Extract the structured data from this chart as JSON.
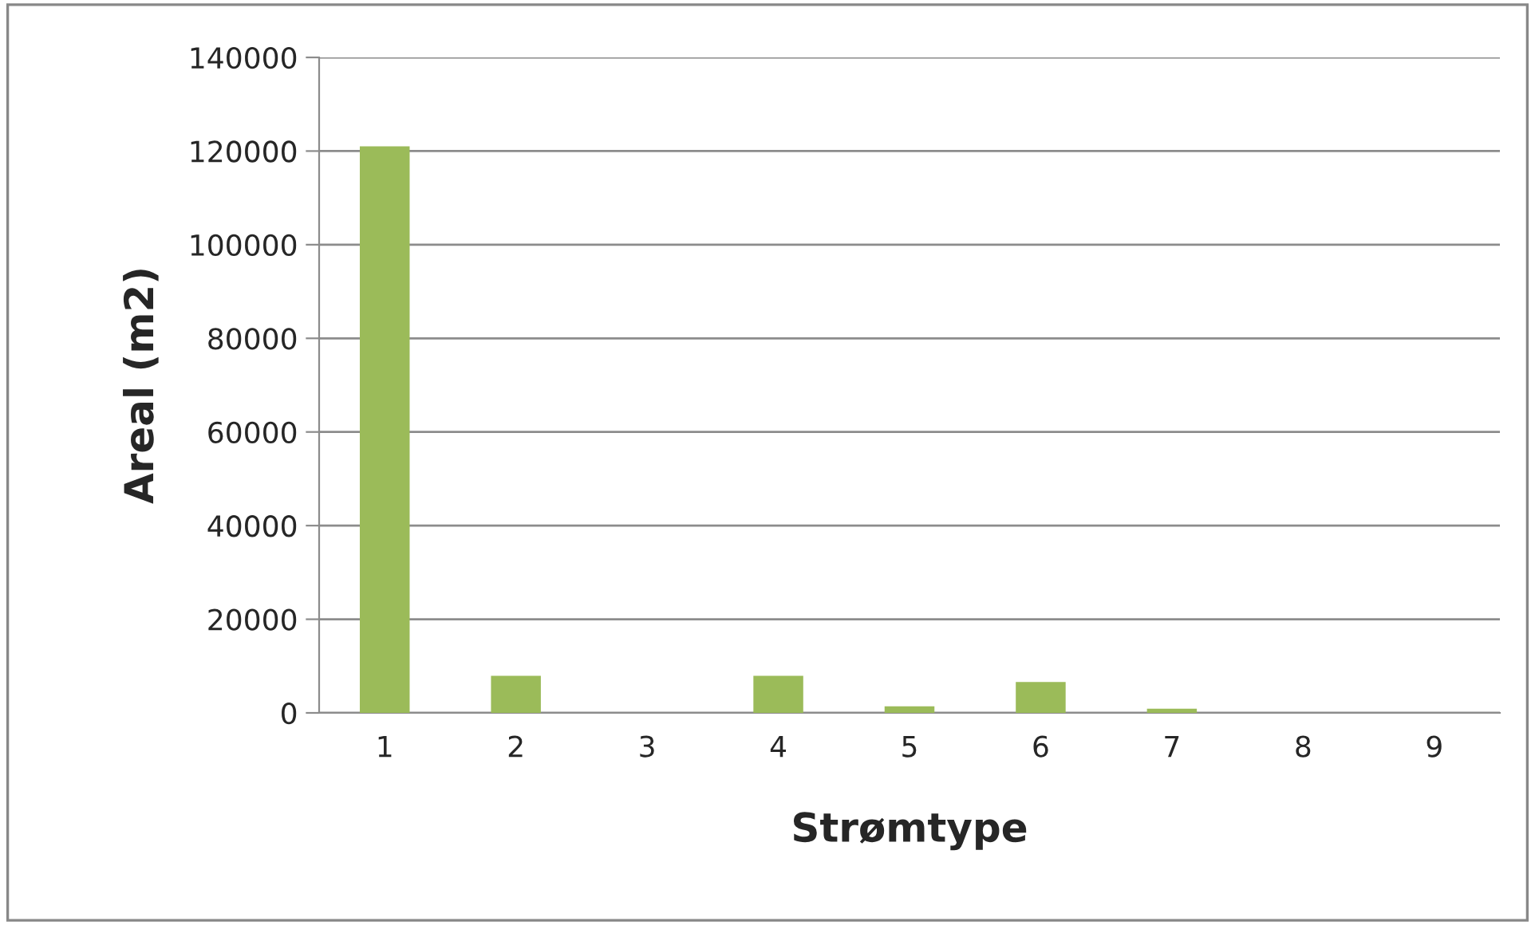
{
  "chart_data": {
    "type": "bar",
    "xlabel": "Strømtype",
    "ylabel": "Areal (m2)",
    "categories": [
      "1",
      "2",
      "3",
      "4",
      "5",
      "6",
      "7",
      "8",
      "9"
    ],
    "values": [
      121000,
      7900,
      0,
      7900,
      1400,
      6600,
      900,
      0,
      0
    ],
    "color": "#9bbb59",
    "ylim": [
      0,
      140000
    ],
    "yticks": [
      0,
      20000,
      40000,
      60000,
      80000,
      100000,
      120000,
      140000
    ],
    "grid": "y",
    "legend": false
  }
}
